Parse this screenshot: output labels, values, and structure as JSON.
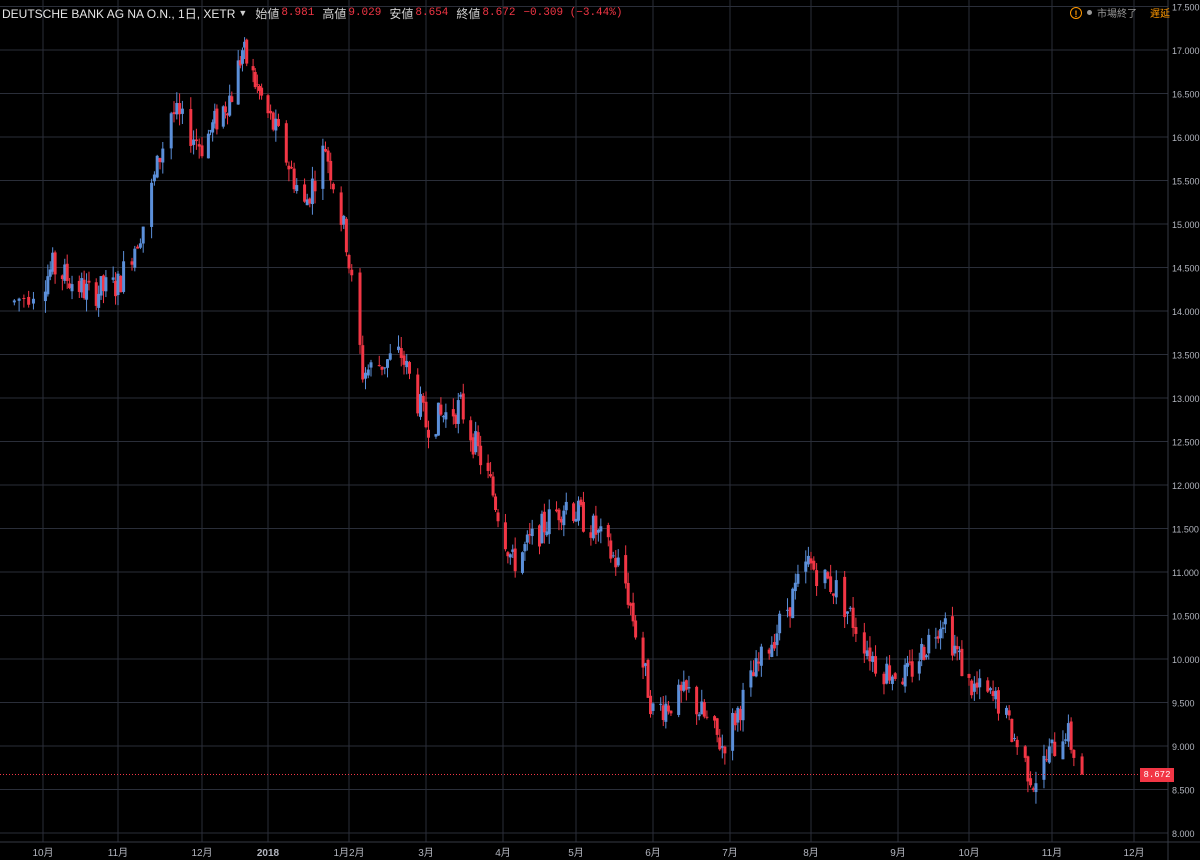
{
  "header": {
    "symbol": "DEUTSCHE BANK AG NA O.N., 1日, XETR",
    "open_label": "始値",
    "open": "8.981",
    "high_label": "高値",
    "high": "9.029",
    "low_label": "安値",
    "low": "8.654",
    "close_label": "終値",
    "close": "8.672",
    "change": "−0.309 (−3.44%)"
  },
  "status": {
    "warning_icon": "!",
    "market": "市場終了",
    "delay": "遅延"
  },
  "last_price_tag": "8.672",
  "colors": {
    "up": "#5b8fd9",
    "down": "#f23645",
    "grid": "#2a2e39",
    "axis_text": "#b2b5be",
    "background": "#000000"
  },
  "chart_data": {
    "type": "candlestick",
    "y_ticks": [
      "8.000",
      "8.500",
      "9.000",
      "9.500",
      "10.000",
      "10.500",
      "11.000",
      "11.500",
      "12.000",
      "12.500",
      "13.000",
      "13.500",
      "14.000",
      "14.500",
      "15.000",
      "15.500",
      "16.000",
      "16.500",
      "17.000",
      "17.500"
    ],
    "ylim": [
      7.95,
      17.55
    ],
    "x_ticks": [
      "10月",
      "11月",
      "12月",
      "2018",
      "1月2月",
      "3月",
      "4月",
      "5月",
      "6月",
      "7月",
      "8月",
      "9月",
      "10月",
      "11月",
      "12月"
    ],
    "last_price": 8.672,
    "series": [
      {
        "date": "2017-09-25",
        "value": 14.1
      },
      {
        "date": "2017-10-05",
        "value": 14.5
      },
      {
        "date": "2017-10-20",
        "value": 14.2
      },
      {
        "date": "2017-11-01",
        "value": 14.3
      },
      {
        "date": "2017-11-10",
        "value": 15.0
      },
      {
        "date": "2017-11-20",
        "value": 16.3
      },
      {
        "date": "2017-12-01",
        "value": 15.9
      },
      {
        "date": "2017-12-15",
        "value": 16.5
      },
      {
        "date": "2017-12-20",
        "value": 17.0
      },
      {
        "date": "2018-01-05",
        "value": 16.0
      },
      {
        "date": "2018-01-15",
        "value": 15.2
      },
      {
        "date": "2018-01-23",
        "value": 15.9
      },
      {
        "date": "2018-01-31",
        "value": 14.8
      },
      {
        "date": "2018-02-06",
        "value": 13.3
      },
      {
        "date": "2018-02-20",
        "value": 13.5
      },
      {
        "date": "2018-03-01",
        "value": 12.7
      },
      {
        "date": "2018-03-15",
        "value": 12.9
      },
      {
        "date": "2018-03-27",
        "value": 12.0
      },
      {
        "date": "2018-04-05",
        "value": 11.1
      },
      {
        "date": "2018-04-20",
        "value": 11.6
      },
      {
        "date": "2018-04-27",
        "value": 11.8
      },
      {
        "date": "2018-05-08",
        "value": 11.5
      },
      {
        "date": "2018-05-20",
        "value": 11.0
      },
      {
        "date": "2018-06-01",
        "value": 9.4
      },
      {
        "date": "2018-06-15",
        "value": 9.6
      },
      {
        "date": "2018-06-28",
        "value": 9.0
      },
      {
        "date": "2018-07-10",
        "value": 9.8
      },
      {
        "date": "2018-07-20",
        "value": 10.4
      },
      {
        "date": "2018-07-31",
        "value": 11.1
      },
      {
        "date": "2018-08-10",
        "value": 10.8
      },
      {
        "date": "2018-08-25",
        "value": 9.9
      },
      {
        "date": "2018-09-05",
        "value": 9.8
      },
      {
        "date": "2018-09-20",
        "value": 10.5
      },
      {
        "date": "2018-10-01",
        "value": 9.7
      },
      {
        "date": "2018-10-12",
        "value": 9.5
      },
      {
        "date": "2018-10-25",
        "value": 8.6
      },
      {
        "date": "2018-11-06",
        "value": 9.2
      },
      {
        "date": "2018-11-12",
        "value": 8.67
      }
    ]
  }
}
